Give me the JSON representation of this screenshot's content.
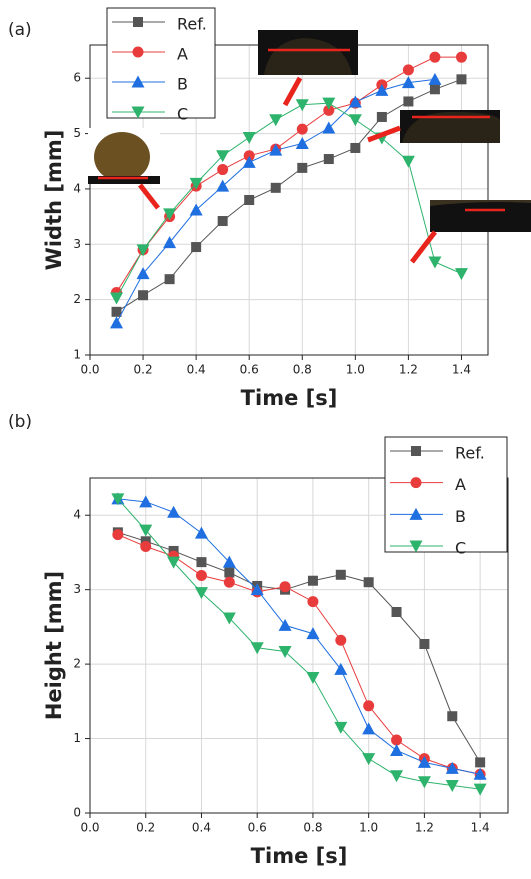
{
  "chart_data": [
    {
      "type": "line",
      "panel_label": "(a)",
      "x_label": "Time [s]",
      "y_label": "Width [mm]",
      "x": [
        0.1,
        0.2,
        0.3,
        0.4,
        0.5,
        0.6,
        0.7,
        0.8,
        0.9,
        1.0,
        1.1,
        1.2,
        1.3,
        1.4
      ],
      "series": [
        {
          "name": "Ref.",
          "color": "#555555",
          "marker": "square",
          "values": [
            1.78,
            2.08,
            2.37,
            2.95,
            3.42,
            3.8,
            4.02,
            4.38,
            4.54,
            4.74,
            5.3,
            5.58,
            5.8,
            5.98
          ]
        },
        {
          "name": "A",
          "color": "#e83c3c",
          "marker": "circle",
          "values": [
            2.13,
            2.9,
            3.5,
            4.05,
            4.35,
            4.6,
            4.72,
            5.08,
            5.42,
            5.55,
            5.88,
            6.15,
            6.38,
            6.38
          ]
        },
        {
          "name": "B",
          "color": "#1f6fe0",
          "marker": "triangle-up",
          "values": [
            1.58,
            2.47,
            3.03,
            3.62,
            4.05,
            4.48,
            4.7,
            4.82,
            5.1,
            5.57,
            5.78,
            5.92,
            5.98,
            null
          ]
        },
        {
          "name": "C",
          "color": "#2db36b",
          "marker": "triangle-down",
          "values": [
            2.03,
            2.9,
            3.55,
            4.1,
            4.6,
            4.93,
            5.25,
            5.52,
            5.55,
            5.25,
            4.92,
            4.5,
            2.68,
            2.47
          ]
        }
      ],
      "xlim": [
        0,
        1.5
      ],
      "ylim": [
        1,
        6.6
      ],
      "xticks": [
        {
          "value": 0,
          "label": "0.0"
        },
        0.2,
        0.4,
        0.6,
        0.8,
        {
          "value": 1,
          "label": "1.0"
        },
        1.2,
        1.4
      ],
      "yticks": [
        1,
        2,
        3,
        4,
        5,
        6
      ],
      "grid": true,
      "legend": "upper left"
    },
    {
      "type": "line",
      "panel_label": "(b)",
      "x_label": "Time [s]",
      "y_label": "Height [mm]",
      "x": [
        0.1,
        0.2,
        0.3,
        0.4,
        0.5,
        0.6,
        0.7,
        0.8,
        0.9,
        1.0,
        1.1,
        1.2,
        1.3,
        1.4
      ],
      "series": [
        {
          "name": "Ref.",
          "color": "#555555",
          "marker": "square",
          "values": [
            3.77,
            3.65,
            3.52,
            3.37,
            3.23,
            3.05,
            3.0,
            3.12,
            3.2,
            3.1,
            2.7,
            2.27,
            1.3,
            0.68
          ]
        },
        {
          "name": "A",
          "color": "#e83c3c",
          "marker": "circle",
          "values": [
            3.74,
            3.58,
            3.45,
            3.19,
            3.1,
            2.97,
            3.04,
            2.84,
            2.32,
            1.44,
            0.98,
            0.73,
            0.6,
            0.52
          ]
        },
        {
          "name": "B",
          "color": "#1f6fe0",
          "marker": "triangle-up",
          "values": [
            4.22,
            4.18,
            4.04,
            3.76,
            3.37,
            3.0,
            2.52,
            2.41,
            1.93,
            1.13,
            0.84,
            0.68,
            0.6,
            0.52
          ]
        },
        {
          "name": "C",
          "color": "#2db36b",
          "marker": "triangle-down",
          "values": [
            4.22,
            3.8,
            3.37,
            2.96,
            2.62,
            2.22,
            2.17,
            1.82,
            1.15,
            0.73,
            0.5,
            0.42,
            0.37,
            0.32
          ]
        }
      ],
      "xlim": [
        0,
        1.5
      ],
      "ylim": [
        0,
        4.5
      ],
      "xticks": [
        {
          "value": 0,
          "label": "0.0"
        },
        0.2,
        0.4,
        0.6,
        0.8,
        {
          "value": 1,
          "label": "1.0"
        },
        1.2,
        1.4
      ],
      "yticks": [
        0,
        1,
        2,
        3,
        4
      ],
      "grid": true,
      "legend": "upper right"
    }
  ]
}
